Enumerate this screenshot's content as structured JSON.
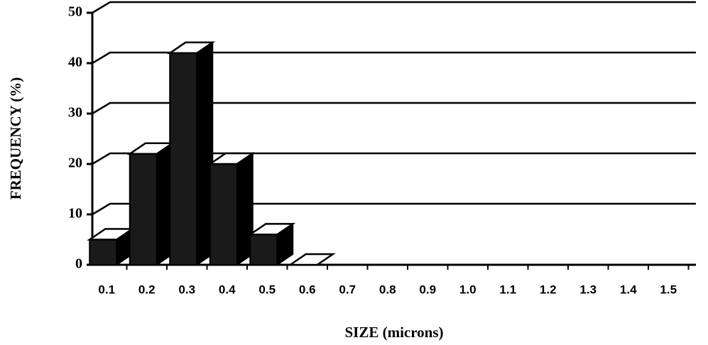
{
  "chart_data": {
    "type": "bar3d",
    "categories": [
      "0.1",
      "0.2",
      "0.3",
      "0.4",
      "0.5",
      "0.6",
      "0.7",
      "0.8",
      "0.9",
      "1.0",
      "1.1",
      "1.2",
      "1.3",
      "1.4",
      "1.5"
    ],
    "values": [
      5,
      22,
      42,
      20,
      6,
      0,
      null,
      null,
      null,
      null,
      null,
      null,
      null,
      null,
      null
    ],
    "color": "#1a1a1a",
    "xlabel": "SIZE (microns)",
    "ylabel": "FREQUENCY (%)",
    "ylim": [
      0,
      50
    ],
    "yticks": [
      0,
      10,
      20,
      30,
      40,
      50
    ],
    "grid": true
  }
}
